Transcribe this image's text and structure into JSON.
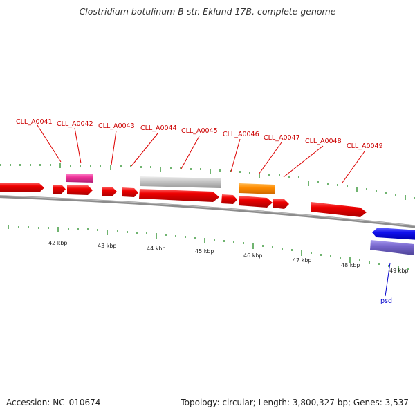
{
  "title": "Clostridium botulinum B str. Eklund 17B, complete genome",
  "footer": {
    "accession": "Accession: NC_010674",
    "summary": "Topology: circular; Length: 3,800,327 bp; Genes: 3,537"
  },
  "colors": {
    "cds_forward": "#ee0000",
    "cds_reverse_blue": "#1111ee",
    "cds_purple": "#7766cc",
    "rrna_pink": "#ee3399",
    "grey_feature": "#c8c8c8",
    "orange_feature": "#ff8c00",
    "backbone": "#808080",
    "tick_green": "#228b22",
    "label_red": "#cc0000",
    "label_blue": "#0000cc"
  },
  "gene_labels": [
    "CLL_A0041",
    "CLL_A0042",
    "CLL_A0043",
    "CLL_A0044",
    "CLL_A0045",
    "CLL_A0046",
    "CLL_A0047",
    "CLL_A0048",
    "CLL_A0049"
  ],
  "extra_labels": [
    "psd"
  ],
  "kbp_labels": [
    "42 kbp",
    "43 kbp",
    "44 kbp",
    "45 kbp",
    "46 kbp",
    "47 kbp",
    "48 kbp",
    "49 kbp"
  ]
}
